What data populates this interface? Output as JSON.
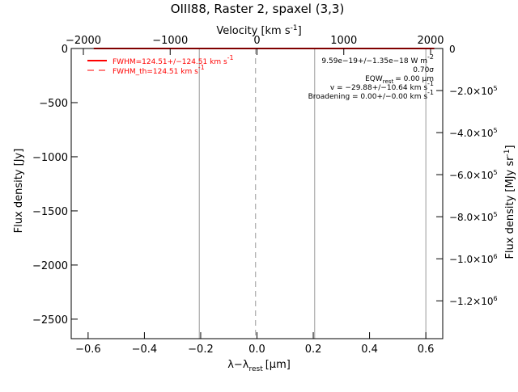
{
  "chart_data": {
    "type": "line",
    "title": "OIII88, Raster 2, spaxel (3,3)",
    "xlabel_bottom": "λ−λ",
    "xlabel_bottom_sub": "rest",
    "xlabel_bottom_unit": "[μm]",
    "xlabel_top": "Velocity [km s",
    "xlabel_top_sup": "-1",
    "xlabel_top_close": "]",
    "ylabel_left": "Flux density [Jy]",
    "ylabel_right": "Flux density [MJy sr",
    "ylabel_right_sup": "-1",
    "ylabel_right_close": "]",
    "xlim": [
      -0.66,
      0.66
    ],
    "ylim": [
      -2680,
      0
    ],
    "velocity_lim": [
      -2140,
      2140
    ],
    "right_lim": [
      -1380000,
      0
    ],
    "x_ticks": [
      {
        "v": -0.6,
        "label": "−0.6"
      },
      {
        "v": -0.4,
        "label": "−0.4"
      },
      {
        "v": -0.2,
        "label": "−0.2"
      },
      {
        "v": 0.0,
        "label": "0.0"
      },
      {
        "v": 0.2,
        "label": "0.2"
      },
      {
        "v": 0.4,
        "label": "0.4"
      },
      {
        "v": 0.6,
        "label": "0.6"
      }
    ],
    "y_ticks": [
      {
        "v": 0,
        "label": "0"
      },
      {
        "v": -500,
        "label": "−500"
      },
      {
        "v": -1000,
        "label": "−1000"
      },
      {
        "v": -1500,
        "label": "−1500"
      },
      {
        "v": -2000,
        "label": "−2000"
      },
      {
        "v": -2500,
        "label": "−2500"
      }
    ],
    "top_ticks": [
      {
        "v": -2000,
        "label": "−2000"
      },
      {
        "v": -1000,
        "label": "−1000"
      },
      {
        "v": 0,
        "label": "0"
      },
      {
        "v": 1000,
        "label": "1000"
      },
      {
        "v": 2000,
        "label": "2000"
      }
    ],
    "right_ticks": [
      {
        "v": 0,
        "label": "0"
      },
      {
        "v": -200000,
        "label": "−2.0×10",
        "sup": "5"
      },
      {
        "v": -400000,
        "label": "−4.0×10",
        "sup": "5"
      },
      {
        "v": -600000,
        "label": "−6.0×10",
        "sup": "5"
      },
      {
        "v": -800000,
        "label": "−8.0×10",
        "sup": "5"
      },
      {
        "v": -1000000,
        "label": "−1.0×10",
        "sup": "6"
      },
      {
        "v": -1200000,
        "label": "−1.2×10",
        "sup": "6"
      }
    ],
    "vertical_lines": [
      {
        "x": -0.205,
        "style": "solid"
      },
      {
        "x": -0.005,
        "style": "dashed"
      },
      {
        "x": 0.205,
        "style": "solid"
      },
      {
        "x": 0.6,
        "style": "solid"
      }
    ],
    "series": [
      {
        "name": "FWHM=124.51+/−124.51 km s",
        "sup": "-1",
        "style": "solid",
        "color": "#ff0000",
        "x": [
          -0.58,
          -0.4,
          -0.2,
          0.0,
          0.2,
          0.4,
          0.6,
          0.63
        ],
        "y": [
          0,
          0,
          0,
          0,
          0,
          0,
          0,
          0
        ]
      },
      {
        "name": "FWHM_th=124.51 km s",
        "sup": "-1",
        "style": "dashed",
        "color": "#ff0000",
        "x": [],
        "y": []
      }
    ],
    "annotations": [
      {
        "text": "9.59e−19+/−1.35e−18 W m",
        "sup": "-2"
      },
      {
        "text": "0.70σ"
      },
      {
        "text": "EQW",
        "sub": "rest",
        "tail": "= 0.00 μm"
      },
      {
        "text": "v = −29.88+/−10.64 km s",
        "sup": "-1"
      },
      {
        "text": "Broadening = 0.00+/−0.00 km s",
        "sup": "-1"
      }
    ],
    "grid": false,
    "legend_position": "top-left",
    "colors": {
      "axes": "#000000",
      "series": "#ff0000",
      "vlines": "#999999"
    }
  }
}
